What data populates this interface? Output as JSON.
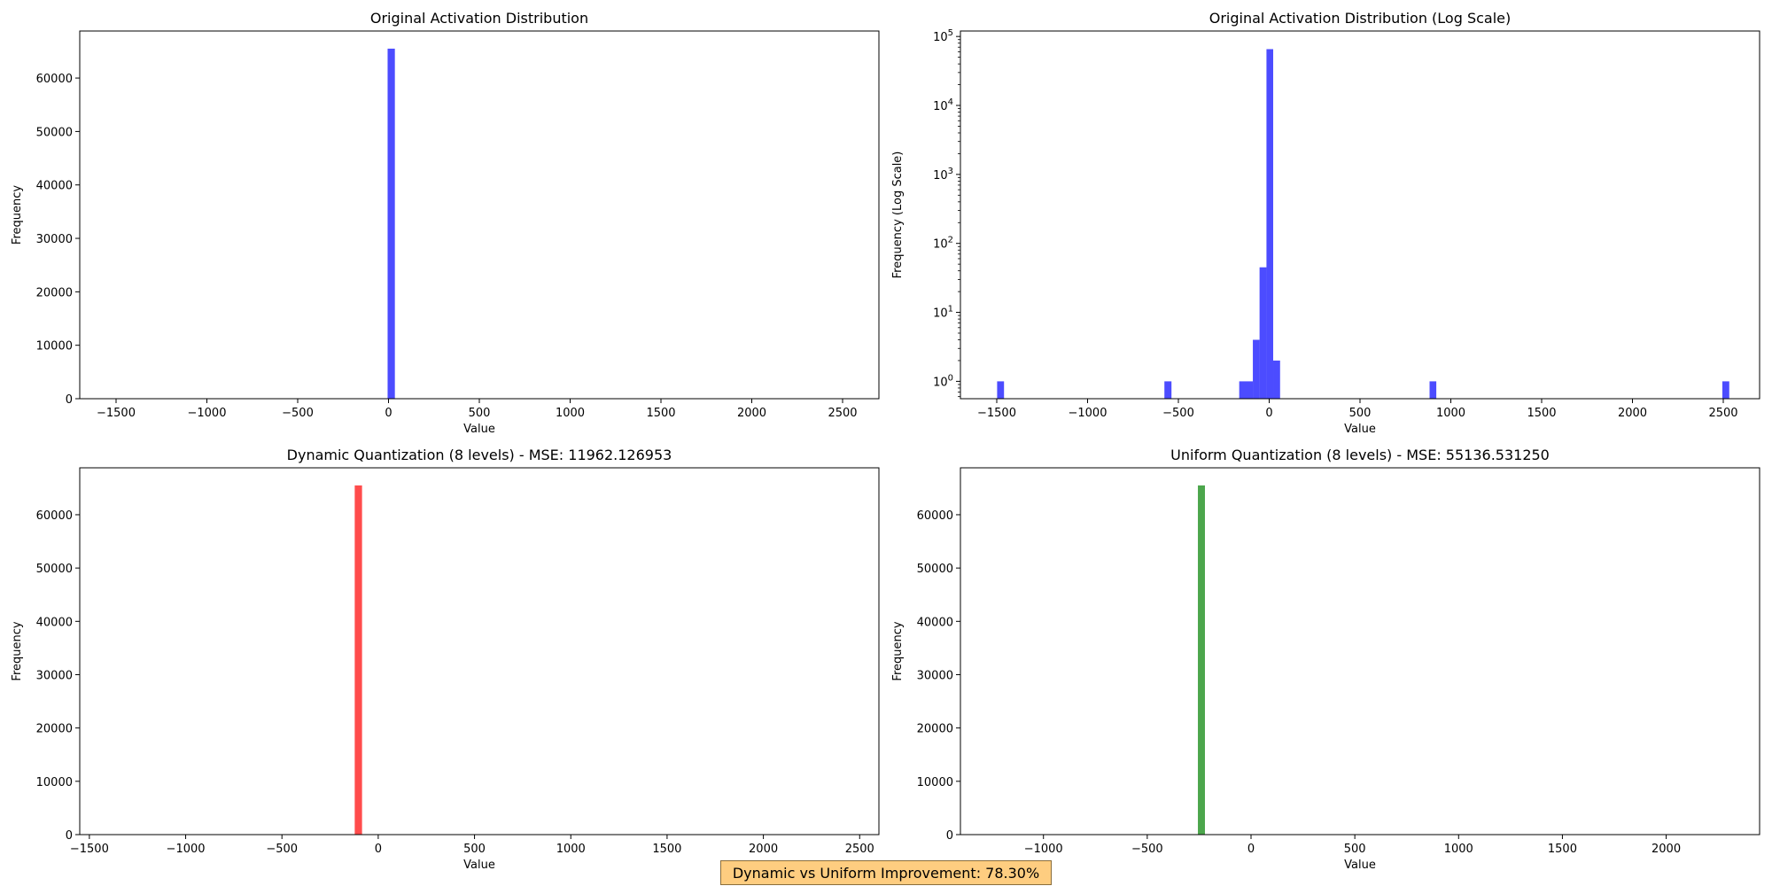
{
  "chart_data": [
    {
      "type": "bar",
      "title": "Original Activation Distribution",
      "xlabel": "Value",
      "ylabel": "Frequency",
      "xscale": "linear",
      "yscale": "linear",
      "xlim": [
        -1700,
        2700
      ],
      "ylim": [
        0,
        68800
      ],
      "xticks": [
        -1500,
        -1000,
        -500,
        0,
        500,
        1000,
        1500,
        2000,
        2500
      ],
      "xtick_labels": [
        "−1500",
        "−1000",
        "−500",
        "0",
        "500",
        "1000",
        "1500",
        "2000",
        "2500"
      ],
      "yticks": [
        0,
        10000,
        20000,
        30000,
        40000,
        50000,
        60000
      ],
      "ytick_labels": [
        "0",
        "10000",
        "20000",
        "30000",
        "40000",
        "50000",
        "60000"
      ],
      "bins": [
        {
          "x0": -5,
          "x1": 35,
          "y": 65500
        }
      ],
      "color": "#0000ff",
      "alpha": 0.7
    },
    {
      "type": "bar",
      "title": "Original Activation Distribution (Log Scale)",
      "xlabel": "Value",
      "ylabel": "Frequency (Log Scale)",
      "xscale": "linear",
      "yscale": "log",
      "xlim": [
        -1700,
        2700
      ],
      "ylim": [
        0.56,
        120000
      ],
      "xticks": [
        -1500,
        -1000,
        -500,
        0,
        500,
        1000,
        1500,
        2000,
        2500
      ],
      "xtick_labels": [
        "−1500",
        "−1000",
        "−500",
        "0",
        "500",
        "1000",
        "1500",
        "2000",
        "2500"
      ],
      "yticks": [
        1,
        10,
        100,
        1000,
        10000,
        100000
      ],
      "ytick_labels": [
        {
          "base": "10",
          "exp": "0"
        },
        {
          "base": "10",
          "exp": "1"
        },
        {
          "base": "10",
          "exp": "2"
        },
        {
          "base": "10",
          "exp": "3"
        },
        {
          "base": "10",
          "exp": "4"
        },
        {
          "base": "10",
          "exp": "5"
        }
      ],
      "bins": [
        {
          "x0": -1498,
          "x1": -1460,
          "y": 1
        },
        {
          "x0": -577,
          "x1": -538,
          "y": 1
        },
        {
          "x0": -165,
          "x1": -90,
          "y": 1
        },
        {
          "x0": -90,
          "x1": -53,
          "y": 4
        },
        {
          "x0": -53,
          "x1": -15,
          "y": 45
        },
        {
          "x0": -15,
          "x1": 22,
          "y": 65500
        },
        {
          "x0": 22,
          "x1": 60,
          "y": 2
        },
        {
          "x0": 883,
          "x1": 920,
          "y": 1
        },
        {
          "x0": 2495,
          "x1": 2533,
          "y": 1
        }
      ],
      "color": "#0000ff",
      "alpha": 0.7
    },
    {
      "type": "bar",
      "title": "Dynamic Quantization (8 levels) - MSE: 11962.126953",
      "xlabel": "Value",
      "ylabel": "Frequency",
      "xscale": "linear",
      "yscale": "linear",
      "xlim": [
        -1550,
        2600
      ],
      "ylim": [
        0,
        68800
      ],
      "xticks": [
        -1500,
        -1000,
        -500,
        0,
        500,
        1000,
        1500,
        2000,
        2500
      ],
      "xtick_labels": [
        "−1500",
        "−1000",
        "−500",
        "0",
        "500",
        "1000",
        "1500",
        "2000",
        "2500"
      ],
      "yticks": [
        0,
        10000,
        20000,
        30000,
        40000,
        50000,
        60000
      ],
      "ytick_labels": [
        "0",
        "10000",
        "20000",
        "30000",
        "40000",
        "50000",
        "60000"
      ],
      "bins": [
        {
          "x0": -122,
          "x1": -84,
          "y": 65500
        }
      ],
      "color": "#ff0000",
      "alpha": 0.7
    },
    {
      "type": "bar",
      "title": "Uniform Quantization (8 levels) - MSE: 55136.531250",
      "xlabel": "Value",
      "ylabel": "Frequency",
      "xscale": "linear",
      "yscale": "linear",
      "xlim": [
        -1400,
        2450
      ],
      "ylim": [
        0,
        68800
      ],
      "xticks": [
        -1000,
        -500,
        0,
        500,
        1000,
        1500,
        2000
      ],
      "xtick_labels": [
        "−1000",
        "−500",
        "0",
        "500",
        "1000",
        "1500",
        "2000"
      ],
      "yticks": [
        0,
        10000,
        20000,
        30000,
        40000,
        50000,
        60000
      ],
      "ytick_labels": [
        "0",
        "10000",
        "20000",
        "30000",
        "40000",
        "50000",
        "60000"
      ],
      "bins": [
        {
          "x0": -256,
          "x1": -222,
          "y": 65500
        }
      ],
      "color": "#008000",
      "alpha": 0.7
    }
  ],
  "footer": {
    "text": "Dynamic vs Uniform Improvement: 78.30%",
    "background": "#fecd80"
  }
}
